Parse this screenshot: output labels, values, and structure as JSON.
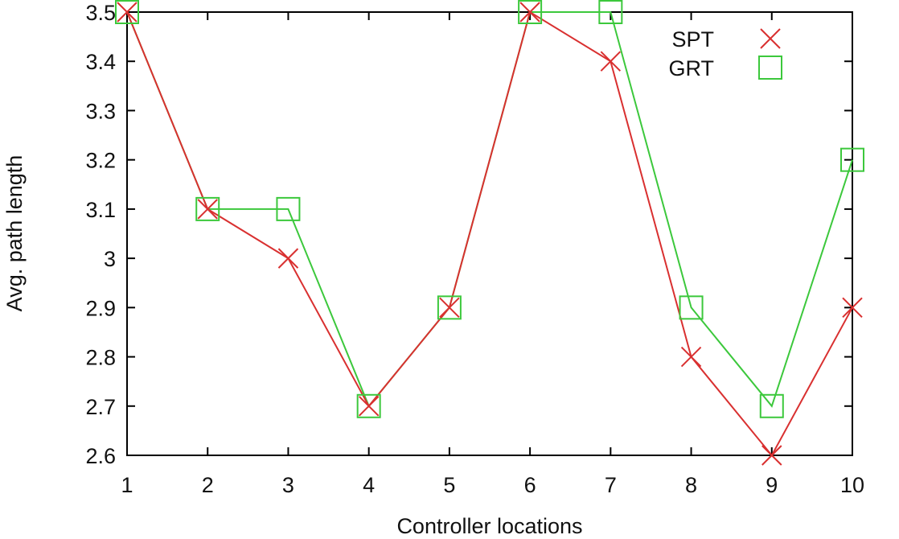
{
  "chart_data": {
    "type": "line",
    "xlabel": "Controller locations",
    "ylabel": "Avg. path length",
    "x": [
      1,
      2,
      3,
      4,
      5,
      6,
      7,
      8,
      9,
      10
    ],
    "xlim": [
      1,
      10
    ],
    "ylim": [
      2.6,
      3.5
    ],
    "yticks": [
      "2.6",
      "2.7",
      "2.8",
      "2.9",
      "3",
      "3.1",
      "3.2",
      "3.3",
      "3.4",
      "3.5"
    ],
    "xticks": [
      "1",
      "2",
      "3",
      "4",
      "5",
      "6",
      "7",
      "8",
      "9",
      "10"
    ],
    "grid": false,
    "legend_position": "top-right",
    "series": [
      {
        "name": "SPT",
        "marker": "x",
        "color": "#d93030",
        "values": [
          3.5,
          3.1,
          3.0,
          2.7,
          2.9,
          3.5,
          3.4,
          2.8,
          2.6,
          2.9
        ]
      },
      {
        "name": "GRT",
        "marker": "square",
        "color": "#3cc83c",
        "values": [
          3.5,
          3.1,
          3.1,
          2.7,
          2.9,
          3.5,
          3.5,
          2.9,
          2.7,
          3.2
        ]
      }
    ]
  }
}
